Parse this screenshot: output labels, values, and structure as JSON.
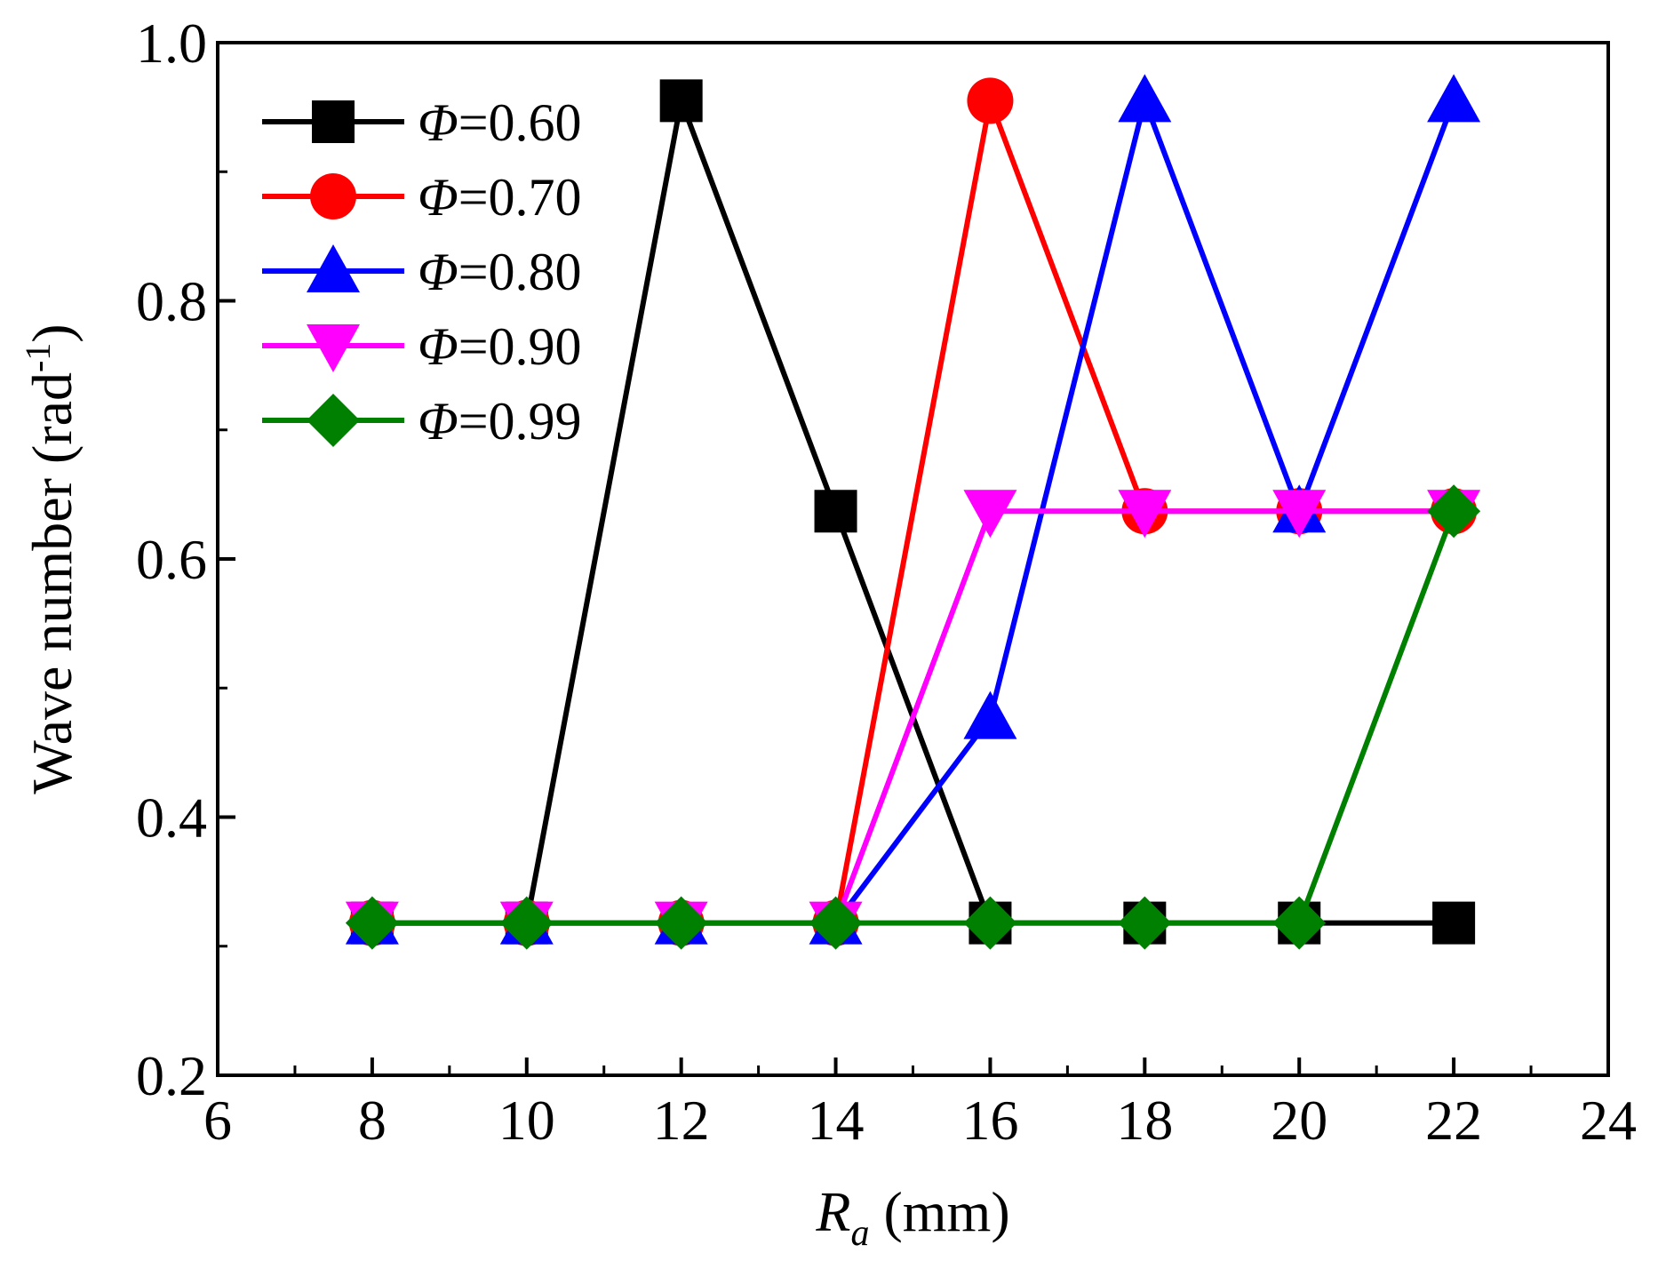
{
  "chart_data": {
    "type": "line",
    "title": "",
    "xlabel": {
      "symbol": "R",
      "subscript": "a",
      "unit": "(mm)"
    },
    "ylabel": {
      "text": "Wave number (rad",
      "superscript": "-1",
      "close": ")"
    },
    "xlim": [
      6,
      24
    ],
    "ylim": [
      0.2,
      1.0
    ],
    "xticks": [
      6,
      8,
      10,
      12,
      14,
      16,
      18,
      20,
      22,
      24
    ],
    "xtick_labels": [
      "6",
      "8",
      "10",
      "12",
      "14",
      "16",
      "18",
      "20",
      "22",
      "24"
    ],
    "yticks": [
      0.2,
      0.4,
      0.6,
      0.8,
      1.0
    ],
    "ytick_labels": [
      "0.2",
      "0.4",
      "0.6",
      "0.8",
      "1.0"
    ],
    "grid": false,
    "legend_position": "top-left",
    "x": [
      8,
      10,
      12,
      14,
      16,
      18,
      20,
      22
    ],
    "series": [
      {
        "name": "Φ=0.60",
        "symbol": "Φ",
        "value_label": "=0.60",
        "color": "#000000",
        "marker": "square",
        "values": [
          0.318,
          0.318,
          0.955,
          0.637,
          0.318,
          0.318,
          0.318,
          0.318
        ]
      },
      {
        "name": "Φ=0.70",
        "symbol": "Φ",
        "value_label": "=0.70",
        "color": "#ff0000",
        "marker": "circle",
        "values": [
          0.318,
          0.318,
          0.318,
          0.318,
          0.955,
          0.637,
          0.637,
          0.637
        ]
      },
      {
        "name": "Φ=0.80",
        "symbol": "Φ",
        "value_label": "=0.80",
        "color": "#0000ff",
        "marker": "triangle-up",
        "values": [
          0.318,
          0.318,
          0.318,
          0.318,
          0.477,
          0.955,
          0.637,
          0.955
        ]
      },
      {
        "name": "Φ=0.90",
        "symbol": "Φ",
        "value_label": "=0.90",
        "color": "#ff00ff",
        "marker": "triangle-down",
        "values": [
          0.318,
          0.318,
          0.318,
          0.318,
          0.637,
          0.637,
          0.637,
          0.637
        ]
      },
      {
        "name": "Φ=0.99",
        "symbol": "Φ",
        "value_label": "=0.99",
        "color": "#008000",
        "marker": "diamond",
        "values": [
          0.318,
          0.318,
          0.318,
          0.318,
          0.318,
          0.318,
          0.318,
          0.637
        ]
      }
    ]
  }
}
